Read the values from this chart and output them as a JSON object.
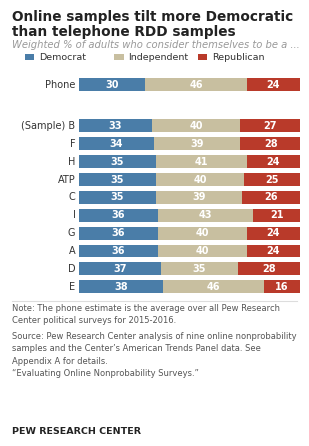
{
  "title_line1": "Online samples tilt more Democratic",
  "title_line2": "than telephone RDD samples",
  "subtitle": "Weighted % of adults who consider themselves to be a ...",
  "labels": [
    "Phone",
    "(Sample) B",
    "F",
    "H",
    "ATP",
    "C",
    "I",
    "G",
    "A",
    "D",
    "E"
  ],
  "democrat": [
    30,
    33,
    34,
    35,
    35,
    35,
    36,
    36,
    36,
    37,
    38
  ],
  "independent": [
    46,
    40,
    39,
    41,
    40,
    39,
    43,
    40,
    40,
    35,
    46
  ],
  "republican": [
    24,
    27,
    28,
    24,
    25,
    26,
    21,
    24,
    24,
    28,
    16
  ],
  "dem_color": "#4a7da8",
  "ind_color": "#c8bfa0",
  "rep_color": "#b93a2a",
  "note_text": "Note: The phone estimate is the average over all Pew Research\nCenter political surveys for 2015-2016.",
  "source_text": "Source: Pew Research Center analysis of nine online nonprobability\nsamples and the Center’s American Trends Panel data. See\nAppendix A for details.\n“Evaluating Online Nonprobability Surveys.”",
  "pew_label": "PEW RESEARCH CENTER",
  "legend_dem": "Democrat",
  "legend_ind": "Independent",
  "legend_rep": "Republican",
  "bar_xlim": [
    0,
    100
  ],
  "bar_height": 0.72
}
